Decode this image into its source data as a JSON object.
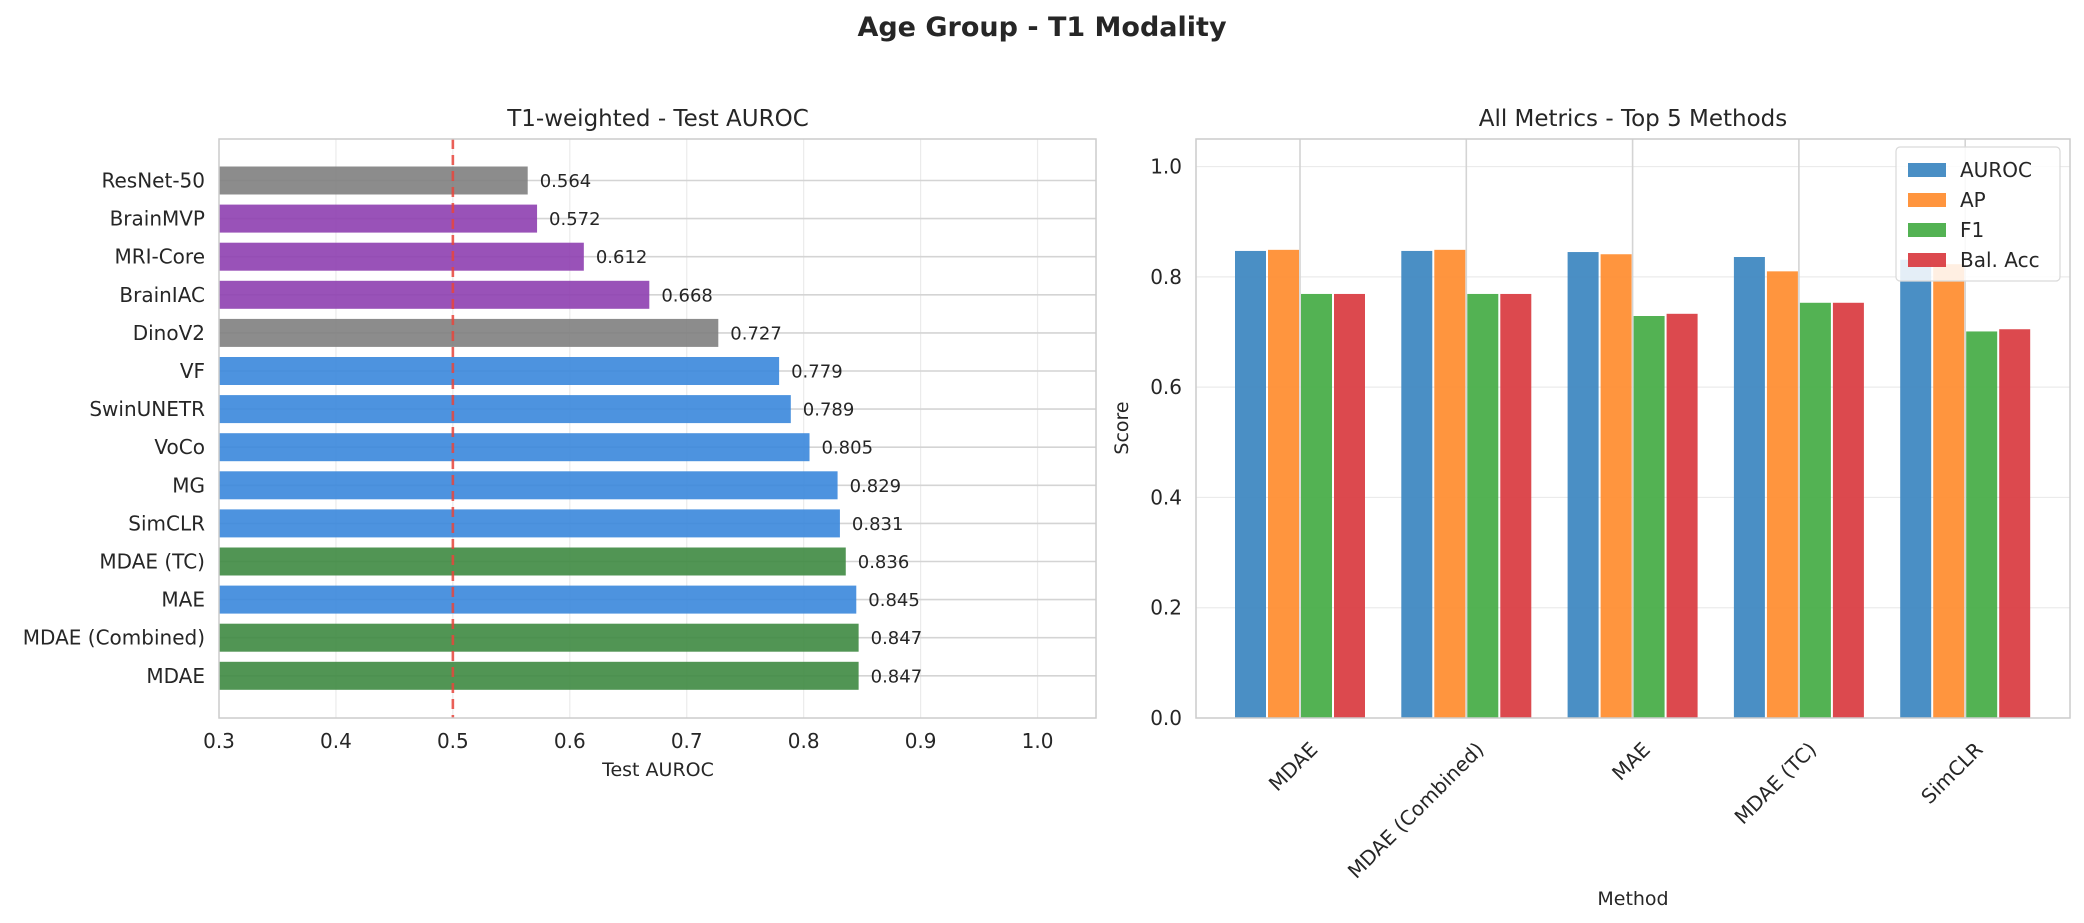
{
  "suptitle": "Age Group - T1 Modality",
  "chart_data": [
    {
      "type": "bar",
      "orientation": "horizontal",
      "title": "T1-weighted - Test AUROC",
      "xlabel": "Test AUROC",
      "ylabel": "",
      "xlim": [
        0.3,
        1.05
      ],
      "xticks": [
        "0.3",
        "0.4",
        "0.5",
        "0.6",
        "0.7",
        "0.8",
        "0.9",
        "1.0"
      ],
      "reference_line": 0.5,
      "reference_line_color": "#e8453c",
      "grid": true,
      "categories": [
        "ResNet-50",
        "BrainMVP",
        "MRI-Core",
        "BrainIAC",
        "DinoV2",
        "VF",
        "SwinUNETR",
        "VoCo",
        "MG",
        "SimCLR",
        "MDAE (TC)",
        "MAE",
        "MDAE (Combined)",
        "MDAE"
      ],
      "values": [
        0.564,
        0.572,
        0.612,
        0.668,
        0.727,
        0.779,
        0.789,
        0.805,
        0.829,
        0.831,
        0.836,
        0.845,
        0.847,
        0.847
      ],
      "value_labels": [
        "0.564",
        "0.572",
        "0.612",
        "0.668",
        "0.727",
        "0.779",
        "0.789",
        "0.805",
        "0.829",
        "0.831",
        "0.836",
        "0.845",
        "0.847",
        "0.847"
      ],
      "colors": [
        "#808080",
        "#8e3fb0",
        "#8e3fb0",
        "#8e3fb0",
        "#808080",
        "#3a87db",
        "#3a87db",
        "#3a87db",
        "#3a87db",
        "#3a87db",
        "#3e8a41",
        "#3a87db",
        "#3e8a41",
        "#3e8a41"
      ]
    },
    {
      "type": "bar",
      "title": "All Metrics - Top 5 Methods",
      "xlabel": "Method",
      "ylabel": "Score",
      "ylim": [
        0,
        1.05
      ],
      "yticks": [
        "0.0",
        "0.2",
        "0.4",
        "0.6",
        "0.8",
        "1.0"
      ],
      "grid": true,
      "legend_position": "top-right",
      "categories": [
        "MDAE",
        "MDAE (Combined)",
        "MAE",
        "MDAE (TC)",
        "SimCLR"
      ],
      "series": [
        {
          "name": "AUROC",
          "color": "#3b86c0",
          "values": [
            0.847,
            0.847,
            0.845,
            0.836,
            0.831
          ]
        },
        {
          "name": "AP",
          "color": "#ff8c2e",
          "values": [
            0.849,
            0.849,
            0.841,
            0.81,
            0.823
          ]
        },
        {
          "name": "F1",
          "color": "#44ab44",
          "values": [
            0.769,
            0.769,
            0.729,
            0.753,
            0.701
          ]
        },
        {
          "name": "Bal. Acc",
          "color": "#d93a3f",
          "values": [
            0.769,
            0.769,
            0.733,
            0.753,
            0.705
          ]
        }
      ]
    }
  ]
}
